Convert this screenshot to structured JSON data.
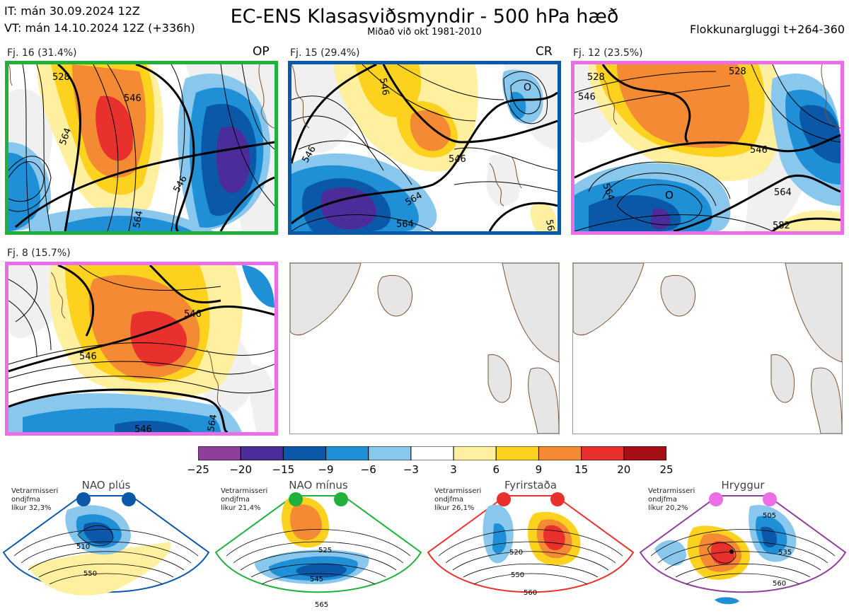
{
  "header": {
    "init_time": "IT: mán 30.09.2024 12Z",
    "valid_time": "VT: mán 14.10.2024 12Z  (+336h)",
    "title": "EC-ENS Klasasviðsmyndir - 500 hPa hæð",
    "subtitle": "Miðað við okt 1981-2010",
    "window": "Flokkunargluggi t+264-360"
  },
  "clusters": [
    {
      "label": "Fj. 16 (31.4%)",
      "tag": "OP",
      "border_color": "#22b03c"
    },
    {
      "label": "Fj. 15 (29.4%)",
      "tag": "CR",
      "border_color": "#0b58a8"
    },
    {
      "label": "Fj. 12 (23.5%)",
      "tag": "",
      "border_color": "#ea6fe6"
    },
    {
      "label": "Fj. 8 (15.7%)",
      "tag": "",
      "border_color": "#ea6fe6"
    }
  ],
  "contour_labels": {
    "p1": [
      "528",
      "546",
      "564",
      "546",
      "564"
    ],
    "p2": [
      "546",
      "546",
      "564",
      "564",
      "546"
    ],
    "p3": [
      "528",
      "528",
      "546",
      "564",
      "546",
      "564",
      "582"
    ],
    "p4": [
      "546",
      "546",
      "546",
      "564"
    ],
    "p2_low": "O",
    "p3_low": "O"
  },
  "colorbar": {
    "ticks": [
      "−25",
      "−20",
      "−15",
      "−9",
      "−6",
      "−3",
      "3",
      "6",
      "9",
      "15",
      "20",
      "25"
    ],
    "colors": [
      "#8e3f9a",
      "#4b2c99",
      "#0b58a8",
      "#1f8fd6",
      "#89c7ed",
      "#ffffff",
      "#fff0a0",
      "#fdd21e",
      "#f48a33",
      "#e8312d",
      "#a50f15"
    ]
  },
  "regimes": [
    {
      "name": "NAO plús",
      "stats": [
        "Vetrarmisseri",
        "ondjfma",
        "líkur 32,3%"
      ],
      "color": "#0b58a8",
      "labels": [
        "510",
        "550"
      ]
    },
    {
      "name": "NAO mínus",
      "stats": [
        "Vetrarmisseri",
        "ondjfma",
        "líkur 21,4%"
      ],
      "color": "#22b03c",
      "labels": [
        "525",
        "545",
        "565"
      ]
    },
    {
      "name": "Fyrirstaða",
      "stats": [
        "Vetrarmisseri",
        "ondjfma",
        "líkur 26,1%"
      ],
      "color": "#e8312d",
      "labels": [
        "520",
        "550",
        "560"
      ]
    },
    {
      "name": "Hryggur",
      "stats": [
        "Vetrarmisseri",
        "ondjfma",
        "líkur 20,2%"
      ],
      "color": "#ea6fe6",
      "labels": [
        "505",
        "535",
        "560"
      ]
    }
  ]
}
